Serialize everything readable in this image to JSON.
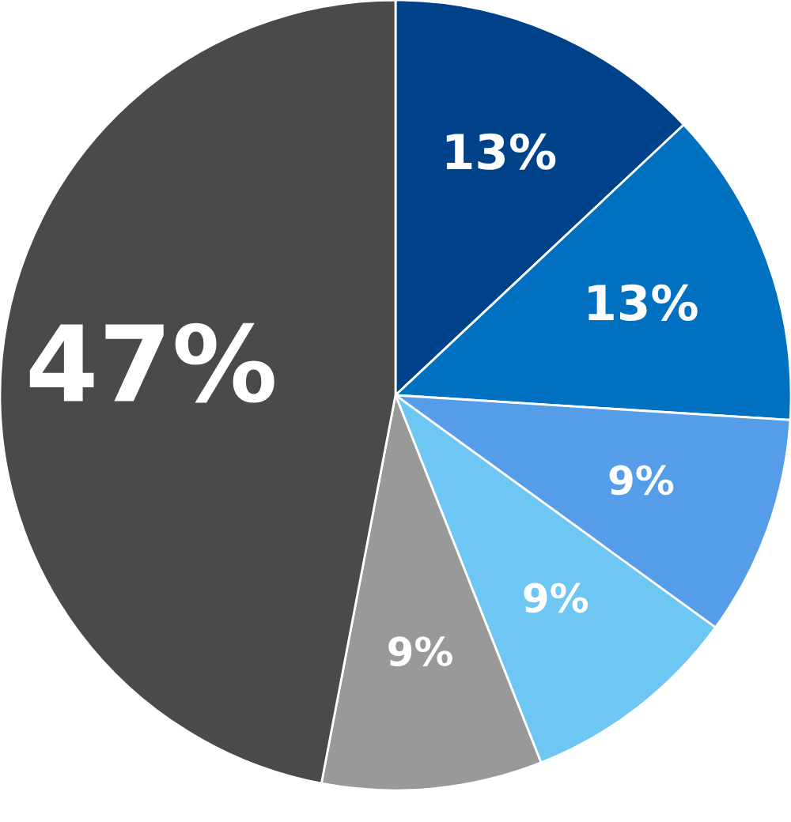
{
  "chart_data": {
    "type": "pie",
    "categories": [
      null,
      null,
      null,
      null,
      null,
      null
    ],
    "values": [
      13,
      13,
      9,
      9,
      9,
      47
    ],
    "colors": [
      "#00428a",
      "#0070c0",
      "#559de8",
      "#6ec6f2",
      "#999999",
      "#4a4a4a"
    ],
    "value_labels": [
      "13%",
      "13%",
      "9%",
      "9%",
      "9%",
      "47%"
    ]
  }
}
